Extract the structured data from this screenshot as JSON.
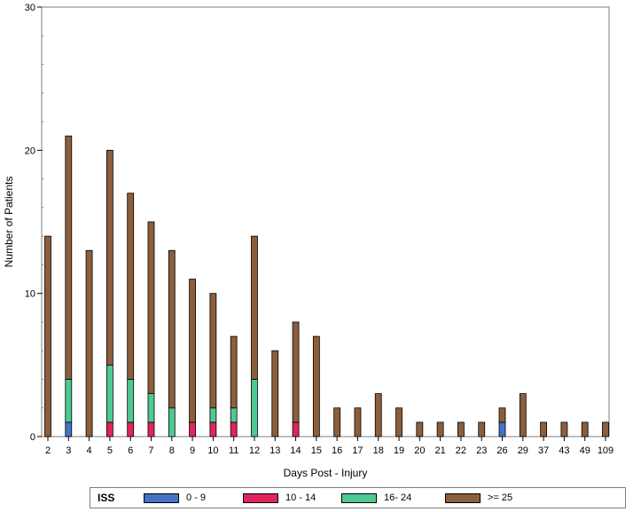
{
  "chart_data": {
    "type": "bar",
    "stacked": true,
    "title": "",
    "xlabel": "Days Post - Injury",
    "ylabel": "Number of Patients",
    "ylim": [
      0,
      30
    ],
    "yticks": [
      0,
      10,
      20,
      30
    ],
    "grid": false,
    "legend_position": "bottom",
    "legend_title": "ISS",
    "categories": [
      "2",
      "3",
      "4",
      "5",
      "6",
      "7",
      "8",
      "9",
      "10",
      "11",
      "12",
      "13",
      "14",
      "15",
      "16",
      "17",
      "18",
      "19",
      "20",
      "21",
      "22",
      "23",
      "26",
      "29",
      "37",
      "43",
      "49",
      "109"
    ],
    "series": [
      {
        "name": "0 - 9",
        "color": "#4472c4",
        "values": [
          0,
          1,
          0,
          0,
          0,
          0,
          0,
          0,
          0,
          0,
          0,
          0,
          0,
          0,
          0,
          0,
          0,
          0,
          0,
          0,
          0,
          0,
          1,
          0,
          0,
          0,
          0,
          0
        ]
      },
      {
        "name": "10 - 14",
        "color": "#e0245e",
        "values": [
          0,
          0,
          0,
          1,
          1,
          1,
          0,
          1,
          1,
          1,
          0,
          0,
          1,
          0,
          0,
          0,
          0,
          0,
          0,
          0,
          0,
          0,
          0,
          0,
          0,
          0,
          0,
          0
        ]
      },
      {
        "name": "16- 24",
        "color": "#4ec992",
        "values": [
          0,
          3,
          0,
          4,
          3,
          2,
          2,
          0,
          1,
          1,
          4,
          0,
          0,
          0,
          0,
          0,
          0,
          0,
          0,
          0,
          0,
          0,
          0,
          0,
          0,
          0,
          0,
          0
        ]
      },
      {
        "name": ">= 25",
        "color": "#8b5e3c",
        "values": [
          14,
          17,
          13,
          15,
          13,
          12,
          11,
          10,
          8,
          5,
          10,
          6,
          7,
          7,
          2,
          2,
          3,
          2,
          1,
          1,
          1,
          1,
          1,
          3,
          1,
          1,
          1,
          1
        ]
      }
    ]
  }
}
